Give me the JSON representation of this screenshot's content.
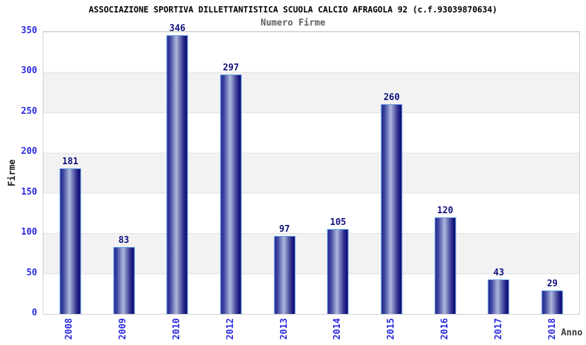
{
  "chart_data": {
    "type": "bar",
    "title": "ASSOCIAZIONE SPORTIVA DILLETTANTISTICA SCUOLA CALCIO AFRAGOLA 92 (c.f.93039870634)",
    "subtitle": "Numero Firme",
    "xlabel": "Anno",
    "ylabel": "Firme",
    "categories": [
      "2008",
      "2009",
      "2010",
      "2012",
      "2013",
      "2014",
      "2015",
      "2016",
      "2017",
      "2018"
    ],
    "values": [
      181,
      83,
      346,
      297,
      97,
      105,
      260,
      120,
      43,
      29
    ],
    "ylim": [
      0,
      350
    ],
    "yticks": [
      0,
      50,
      100,
      150,
      200,
      250,
      300,
      350
    ],
    "grid": "horizontal bands every 50, alternating white and light gray",
    "legend_position": "none",
    "colors": {
      "bar_gradient_dark": "#1b1b85",
      "bar_gradient_light": "#aeb7dc",
      "bar_border": "#5b9be8",
      "axis_tick_label": "#2a2ae0",
      "value_label": "#10107e",
      "title_text": "#000000",
      "subtitle_text": "#5f5f5f",
      "band_gray": "#f2f2f2",
      "gridline": "#e0e0e0",
      "plot_border": "#d0d0d0",
      "axis_title_text": "#3a3a3a"
    }
  }
}
